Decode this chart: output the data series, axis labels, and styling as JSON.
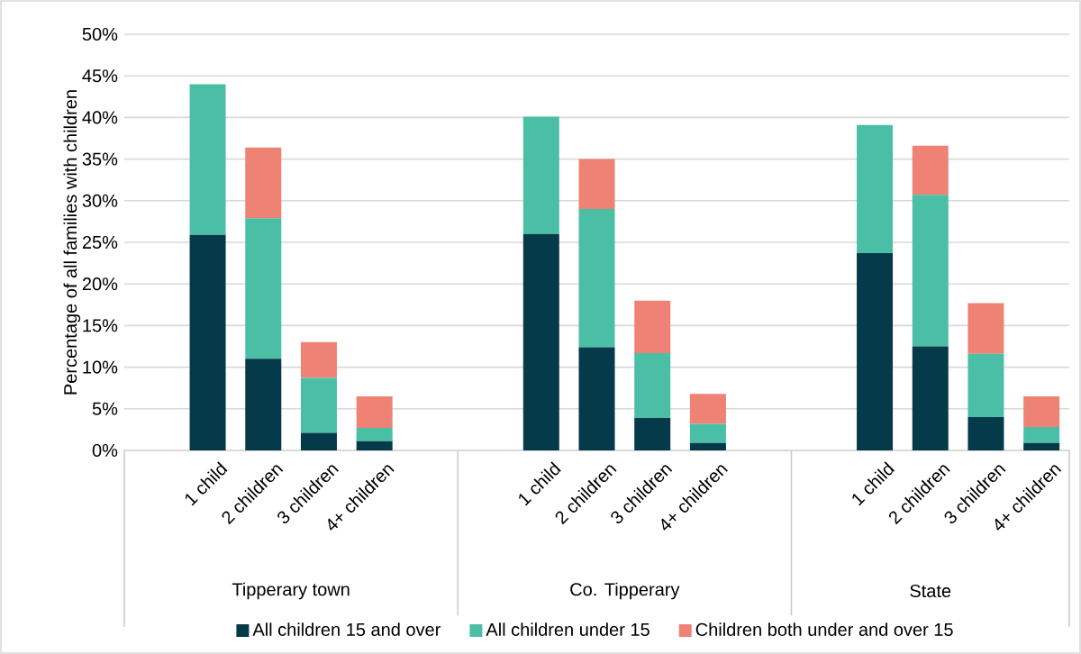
{
  "chart_data": {
    "type": "bar",
    "stacked": true,
    "ylabel": "Percentage of all families with children",
    "categories": [
      null,
      "1 child",
      "2 children",
      "3 children",
      "4+ children",
      null,
      null,
      "1 child",
      "2 children",
      "3 children",
      "4+ children",
      null,
      null,
      "1 child",
      "2 children",
      "3 children",
      "4+ children"
    ],
    "series": [
      {
        "name": "All children 15 and over",
        "color": "#043a4a",
        "values": [
          null,
          25.9,
          11.0,
          2.1,
          1.1,
          null,
          null,
          26.0,
          12.4,
          3.9,
          0.9,
          null,
          null,
          23.7,
          12.5,
          4.0,
          0.9
        ]
      },
      {
        "name": "All children under 15",
        "color": "#4abfa5",
        "values": [
          null,
          18.1,
          16.9,
          6.6,
          1.6,
          null,
          null,
          14.1,
          16.6,
          7.8,
          2.3,
          null,
          null,
          15.4,
          18.2,
          7.6,
          1.9
        ]
      },
      {
        "name": "Children both under and over 15",
        "color": "#ee8274",
        "values": [
          null,
          0,
          8.5,
          4.3,
          3.8,
          null,
          null,
          0,
          6.0,
          6.3,
          3.6,
          null,
          null,
          0,
          5.9,
          6.1,
          3.7
        ]
      }
    ],
    "ylim": [
      0,
      50
    ],
    "yticks": [
      {
        "value": 0,
        "label": "0%"
      },
      {
        "value": 5,
        "label": "5%"
      },
      {
        "value": 10,
        "label": "10%"
      },
      {
        "value": 15,
        "label": "15%"
      },
      {
        "value": 20,
        "label": "20%"
      },
      {
        "value": 25,
        "label": "25%"
      },
      {
        "value": 30,
        "label": "30%"
      },
      {
        "value": 35,
        "label": "35%"
      },
      {
        "value": 40,
        "label": "40%"
      },
      {
        "value": 45,
        "label": "45%"
      },
      {
        "value": 50,
        "label": "50%"
      }
    ],
    "grid": "y",
    "legend": "bottom",
    "annotations": [
      "Tipperary town",
      "Co. Tipperary",
      "State"
    ]
  }
}
